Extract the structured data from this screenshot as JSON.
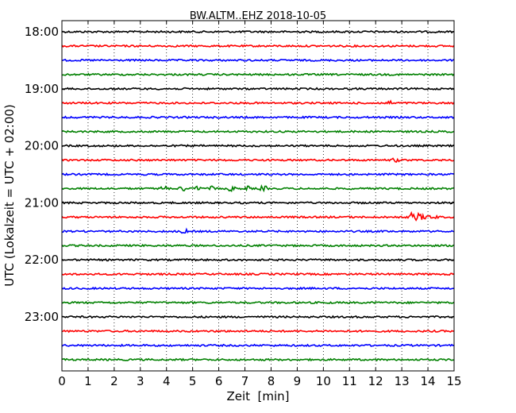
{
  "chart_data": {
    "type": "line",
    "title": "BW.ALTM..EHZ 2018-10-05",
    "xlabel": "Zeit  [min]",
    "ylabel": "UTC (Lokalzeit = UTC + 02:00)",
    "xlim": [
      0,
      15
    ],
    "x_ticks": [
      "0",
      "1",
      "2",
      "3",
      "4",
      "5",
      "6",
      "7",
      "8",
      "9",
      "10",
      "11",
      "12",
      "13",
      "14",
      "15"
    ],
    "y_tick_labels": [
      "18:00",
      "19:00",
      "20:00",
      "21:00",
      "22:00",
      "23:00"
    ],
    "grid": "vertical dotted",
    "trace_colors": [
      "#000000",
      "#ff0000",
      "#0000ff",
      "#008000"
    ],
    "traces": [
      {
        "start": "18:00"
      },
      {
        "start": "18:15"
      },
      {
        "start": "18:30"
      },
      {
        "start": "18:45"
      },
      {
        "start": "19:00"
      },
      {
        "start": "19:15"
      },
      {
        "start": "19:30"
      },
      {
        "start": "19:45"
      },
      {
        "start": "20:00"
      },
      {
        "start": "20:15"
      },
      {
        "start": "20:30"
      },
      {
        "start": "20:45"
      },
      {
        "start": "21:00"
      },
      {
        "start": "21:15"
      },
      {
        "start": "21:30"
      },
      {
        "start": "21:45"
      },
      {
        "start": "22:00"
      },
      {
        "start": "22:15"
      },
      {
        "start": "22:30"
      },
      {
        "start": "22:45"
      },
      {
        "start": "23:00"
      },
      {
        "start": "23:15"
      },
      {
        "start": "23:30"
      },
      {
        "start": "23:45"
      }
    ],
    "events": [
      {
        "start": "20:45",
        "minutes": [
          3.9,
          4.6,
          5.2,
          5.8,
          6.5,
          7.1,
          7.7
        ],
        "amplitude": "small"
      },
      {
        "start": "21:15",
        "minute": 13.3,
        "duration_min": 1.1,
        "amplitude": "large"
      },
      {
        "start": "21:30",
        "minute": 4.7,
        "amplitude": "small"
      },
      {
        "start": "19:15",
        "minute": 12.5,
        "amplitude": "small"
      },
      {
        "start": "20:15",
        "minute": 12.8,
        "amplitude": "small"
      }
    ]
  }
}
